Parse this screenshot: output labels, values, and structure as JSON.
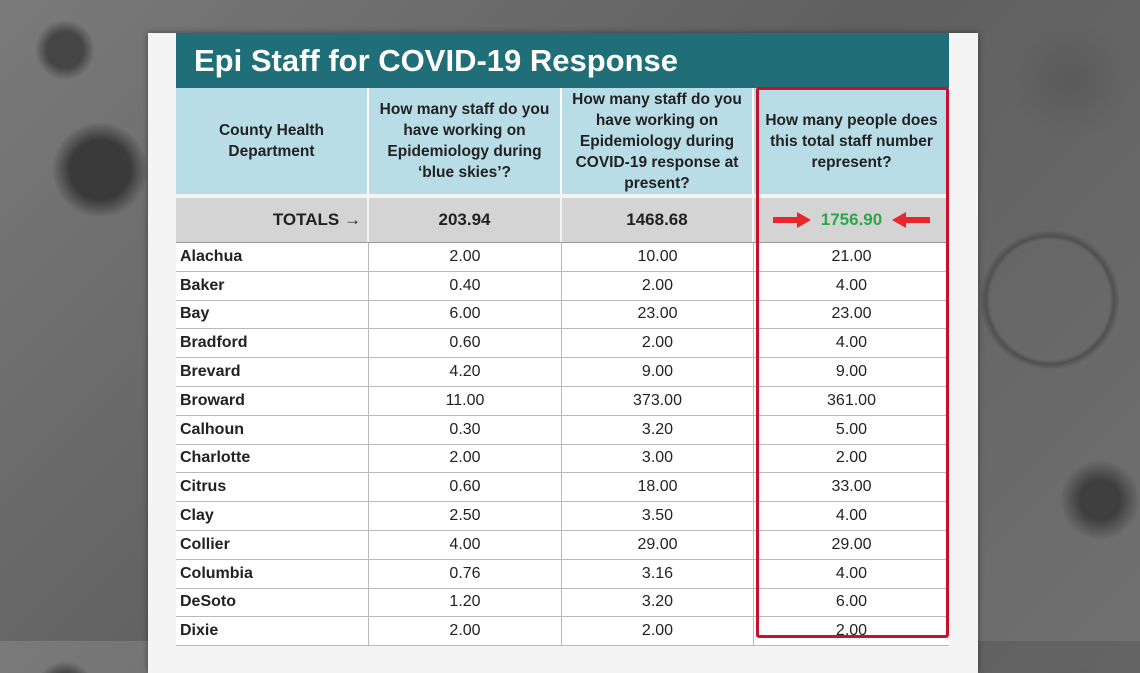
{
  "title": "Epi Staff for COVID-19 Response",
  "headers": [
    "County Health Department",
    "How many staff do you have working on Epidemiology during ‘blue skies’?",
    "How many staff do you have working on Epidemiology during COVID-19 response at present?",
    "How many people does this total staff number represent?"
  ],
  "totals": {
    "label": "TOTALS →",
    "blue_skies": "203.94",
    "covid": "1468.68",
    "people": "1756.90"
  },
  "rows": [
    {
      "county": "Alachua",
      "blue_skies": "2.00",
      "covid": "10.00",
      "people": "21.00",
      "covid_green": true,
      "people_green": true
    },
    {
      "county": "Baker",
      "blue_skies": "0.40",
      "covid": "2.00",
      "people": "4.00"
    },
    {
      "county": "Bay",
      "blue_skies": "6.00",
      "covid": "23.00",
      "people": "23.00"
    },
    {
      "county": "Bradford",
      "blue_skies": "0.60",
      "covid": "2.00",
      "people": "4.00"
    },
    {
      "county": "Brevard",
      "blue_skies": "4.20",
      "covid": "9.00",
      "people": "9.00"
    },
    {
      "county": "Broward",
      "blue_skies": "11.00",
      "covid": "373.00",
      "people": "361.00",
      "covid_green": true,
      "people_green": true
    },
    {
      "county": "Calhoun",
      "blue_skies": "0.30",
      "covid": "3.20",
      "people": "5.00"
    },
    {
      "county": "Charlotte",
      "blue_skies": "2.00",
      "covid": "3.00",
      "people": "2.00"
    },
    {
      "county": "Citrus",
      "blue_skies": "0.60",
      "covid": "18.00",
      "people": "33.00"
    },
    {
      "county": "Clay",
      "blue_skies": "2.50",
      "covid": "3.50",
      "people": "4.00"
    },
    {
      "county": "Collier",
      "blue_skies": "4.00",
      "covid": "29.00",
      "people": "29.00"
    },
    {
      "county": "Columbia",
      "blue_skies": "0.76",
      "covid": "3.16",
      "people": "4.00"
    },
    {
      "county": "DeSoto",
      "blue_skies": "1.20",
      "covid": "3.20",
      "people": "6.00"
    },
    {
      "county": "Dixie",
      "blue_skies": "2.00",
      "covid": "2.00",
      "people": "2.00"
    }
  ],
  "colors": {
    "title_bg": "#1f6e78",
    "header_bg": "#b8dde6",
    "highlight": "#c8102e",
    "green_value": "#2ea64a",
    "arrow": "#e8262b"
  }
}
